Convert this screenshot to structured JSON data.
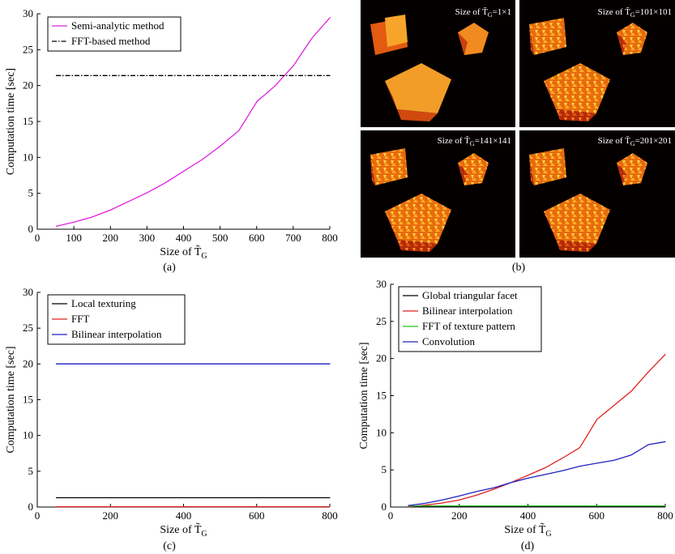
{
  "chart_data": [
    {
      "id": "a",
      "type": "line",
      "caption": "(a)",
      "xlabel": "Size of T̃",
      "xlabel_sub": "G",
      "ylabel": "Computation time [sec]",
      "xlim": [
        0,
        800
      ],
      "ylim": [
        0,
        30
      ],
      "xticks": [
        0,
        100,
        200,
        300,
        400,
        500,
        600,
        700,
        800
      ],
      "yticks": [
        0,
        5,
        10,
        15,
        20,
        25,
        30
      ],
      "legend_position": "top-left",
      "series": [
        {
          "name": "Semi-analytic method",
          "color": "#e020e0",
          "dash": "",
          "x": [
            51,
            101,
            151,
            201,
            251,
            301,
            351,
            401,
            451,
            501,
            551,
            601,
            651,
            701,
            751,
            801
          ],
          "y": [
            0.4,
            1.0,
            1.7,
            2.7,
            3.9,
            5.1,
            6.5,
            8.1,
            9.7,
            11.6,
            13.7,
            17.8,
            20.0,
            22.8,
            26.6,
            29.5
          ]
        },
        {
          "name": "FFT-based method",
          "color": "#000000",
          "dash": "6,2,1.5,2",
          "x": [
            51,
            801
          ],
          "y": [
            21.4,
            21.4
          ]
        }
      ]
    },
    {
      "id": "c",
      "type": "line",
      "caption": "(c)",
      "xlabel": "Size of T̃",
      "xlabel_sub": "G",
      "ylabel": "Computation time [sec]",
      "xlim": [
        0,
        800
      ],
      "ylim": [
        0,
        30
      ],
      "xticks": [
        0,
        200,
        400,
        600,
        800
      ],
      "yticks": [
        0,
        5,
        10,
        15,
        20,
        25,
        30
      ],
      "legend_position": "top-left",
      "series": [
        {
          "name": "Local texturing",
          "color": "#000000",
          "dash": "",
          "x": [
            51,
            801
          ],
          "y": [
            1.3,
            1.3
          ]
        },
        {
          "name": "FFT",
          "color": "#e02020",
          "dash": "",
          "x": [
            51,
            801
          ],
          "y": [
            0.05,
            0.05
          ]
        },
        {
          "name": "Bilinear interpolation",
          "color": "#2020c0",
          "dash": "",
          "x": [
            51,
            801
          ],
          "y": [
            20.0,
            20.0
          ]
        }
      ]
    },
    {
      "id": "d",
      "type": "line",
      "caption": "(d)",
      "xlabel": "Size of T̃",
      "xlabel_sub": "G",
      "ylabel": "Computation time [sec]",
      "xlim": [
        0,
        800
      ],
      "ylim": [
        0,
        30
      ],
      "xticks": [
        0,
        200,
        400,
        600,
        800
      ],
      "yticks": [
        0,
        5,
        10,
        15,
        20,
        25,
        30
      ],
      "legend_position": "top-left",
      "series": [
        {
          "name": "Global triangular facet",
          "color": "#000000",
          "dash": "",
          "x": [
            51,
            801
          ],
          "y": [
            0.05,
            0.05
          ]
        },
        {
          "name": "Bilinear interpolation",
          "color": "#e02020",
          "dash": "",
          "x": [
            51,
            101,
            151,
            201,
            251,
            301,
            351,
            401,
            451,
            501,
            551,
            601,
            651,
            701,
            751,
            801
          ],
          "y": [
            0.05,
            0.25,
            0.55,
            0.95,
            1.6,
            2.4,
            3.3,
            4.3,
            5.3,
            6.6,
            8.0,
            11.8,
            13.7,
            15.6,
            18.2,
            20.6
          ]
        },
        {
          "name": "FFT of texture pattern",
          "color": "#20c020",
          "dash": "",
          "x": [
            51,
            801
          ],
          "y": [
            0.15,
            0.15
          ]
        },
        {
          "name": "Convolution",
          "color": "#2020c0",
          "dash": "",
          "x": [
            51,
            101,
            151,
            201,
            251,
            301,
            351,
            401,
            451,
            501,
            551,
            601,
            651,
            701,
            751,
            801
          ],
          "y": [
            0.2,
            0.5,
            0.95,
            1.5,
            2.1,
            2.6,
            3.3,
            3.9,
            4.4,
            4.9,
            5.5,
            5.9,
            6.3,
            7.0,
            8.4,
            8.8
          ]
        }
      ]
    }
  ],
  "images": {
    "caption": "(b)",
    "panels": [
      {
        "label": "Size of T̃",
        "sub": "G",
        "size": "=1×1"
      },
      {
        "label": "Size of T̃",
        "sub": "G",
        "size": "=101×101"
      },
      {
        "label": "Size of T̃",
        "sub": "G",
        "size": "=141×141"
      },
      {
        "label": "Size of T̃",
        "sub": "G",
        "size": "=201×201"
      }
    ]
  }
}
